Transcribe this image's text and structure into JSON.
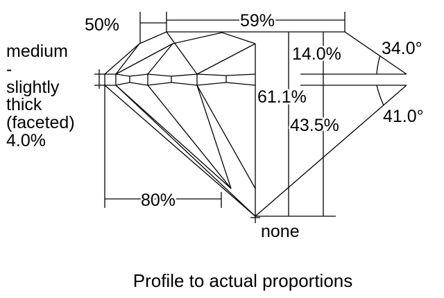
{
  "labels": {
    "crown_height_ratio": "50%",
    "table": "59%",
    "girdle": [
      "medium",
      "-",
      "slightly",
      "thick",
      "(faceted)",
      "4.0%"
    ],
    "crown_height": "14.0%",
    "crown_angle": "34.0°",
    "total_depth": "61.1%",
    "pavilion_depth": "43.5%",
    "pavilion_angle": "41.0°",
    "lower_half": "80%",
    "culet": "none"
  },
  "caption": "Profile to actual proportions"
}
